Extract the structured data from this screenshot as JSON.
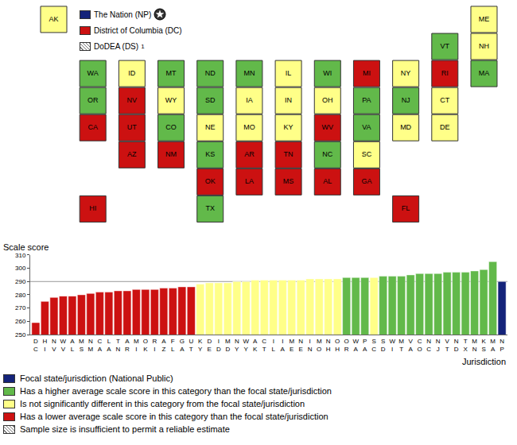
{
  "chart_data": [
    {
      "type": "map",
      "series": [
        {
          "name": "Focal state/jurisdiction (National Public)",
          "color": "#14237a",
          "states": [
            "NP"
          ]
        },
        {
          "name": "Has a higher average scale score in this category than the focal state/jurisdiction",
          "color": "#62b94a",
          "states": [
            "WA",
            "OR",
            "MT",
            "ND",
            "SD",
            "MN",
            "WI",
            "CO",
            "KS",
            "TX",
            "PA",
            "NJ",
            "VA",
            "NC",
            "VT",
            "MA"
          ]
        },
        {
          "name": "Is not significantly different in this category from the focal state/jurisdiction",
          "color": "#ffff88",
          "states": [
            "AK",
            "ID",
            "WY",
            "NE",
            "IA",
            "MO",
            "IL",
            "IN",
            "OH",
            "KY",
            "NY",
            "ME",
            "NH",
            "CT",
            "DE",
            "MD",
            "SC"
          ]
        },
        {
          "name": "Has a lower average scale score in this category than the focal state/jurisdiction",
          "color": "#cc1111",
          "states": [
            "CA",
            "NV",
            "UT",
            "AZ",
            "NM",
            "OK",
            "AR",
            "LA",
            "MS",
            "AL",
            "GA",
            "FL",
            "TN",
            "MI",
            "WV",
            "HI",
            "RI",
            "DC"
          ]
        },
        {
          "name": "Sample size is insufficient to permit a reliable estimate",
          "color": "hatched",
          "states": [
            "DS"
          ]
        }
      ],
      "tiles": [
        "AK",
        "ME",
        "VT",
        "NH",
        "WA",
        "ID",
        "MT",
        "ND",
        "MN",
        "IL",
        "WI",
        "MI",
        "NY",
        "RI",
        "MA",
        "OR",
        "NV",
        "WY",
        "SD",
        "IA",
        "IN",
        "OH",
        "PA",
        "NJ",
        "CT",
        "CA",
        "UT",
        "CO",
        "NE",
        "MO",
        "KY",
        "WV",
        "VA",
        "MD",
        "DE",
        "AZ",
        "NM",
        "KS",
        "AR",
        "TN",
        "NC",
        "SC",
        "OK",
        "LA",
        "MS",
        "AL",
        "GA",
        "HI",
        "TX",
        "FL"
      ],
      "insets": [
        {
          "label": "The Nation (NP)",
          "code": "NP",
          "marker": "star"
        },
        {
          "label": "District of Columbia (DC)",
          "code": "DC"
        },
        {
          "label": "DoDEA (DS)",
          "code": "DS",
          "footnote": "1"
        }
      ]
    },
    {
      "type": "bar",
      "y_label": "Scale score",
      "x_label": "Jurisdiction",
      "categories": [
        "DC",
        "HI",
        "NV",
        "WV",
        "AL",
        "MS",
        "NM",
        "CA",
        "LA",
        "TN",
        "AR",
        "MI",
        "OK",
        "RI",
        "AZ",
        "FL",
        "GA",
        "UT",
        "KY",
        "DE",
        "ID",
        "MD",
        "NY",
        "WY",
        "AK",
        "CT",
        "IL",
        "IA",
        "ME",
        "NE",
        "IN",
        "MO",
        "NH",
        "OH",
        "OR",
        "WA",
        "PA",
        "SC",
        "SD",
        "WI",
        "MT",
        "VA",
        "CO",
        "NC",
        "NJ",
        "VT",
        "ND",
        "TX",
        "MN",
        "KS",
        "MA",
        "NP"
      ],
      "values": [
        259,
        275,
        278,
        279,
        279,
        280,
        281,
        282,
        282,
        283,
        283,
        284,
        284,
        284,
        285,
        285,
        286,
        286,
        288,
        289,
        289,
        289,
        290,
        290,
        291,
        291,
        291,
        291,
        291,
        291,
        292,
        292,
        292,
        292,
        293,
        293,
        293,
        293,
        294,
        294,
        294,
        295,
        296,
        296,
        296,
        297,
        297,
        297,
        298,
        299,
        305,
        290
      ],
      "ylim": [
        250,
        310
      ],
      "yticks": [
        250,
        260,
        270,
        280,
        290,
        300,
        310
      ],
      "grid": false
    }
  ]
}
